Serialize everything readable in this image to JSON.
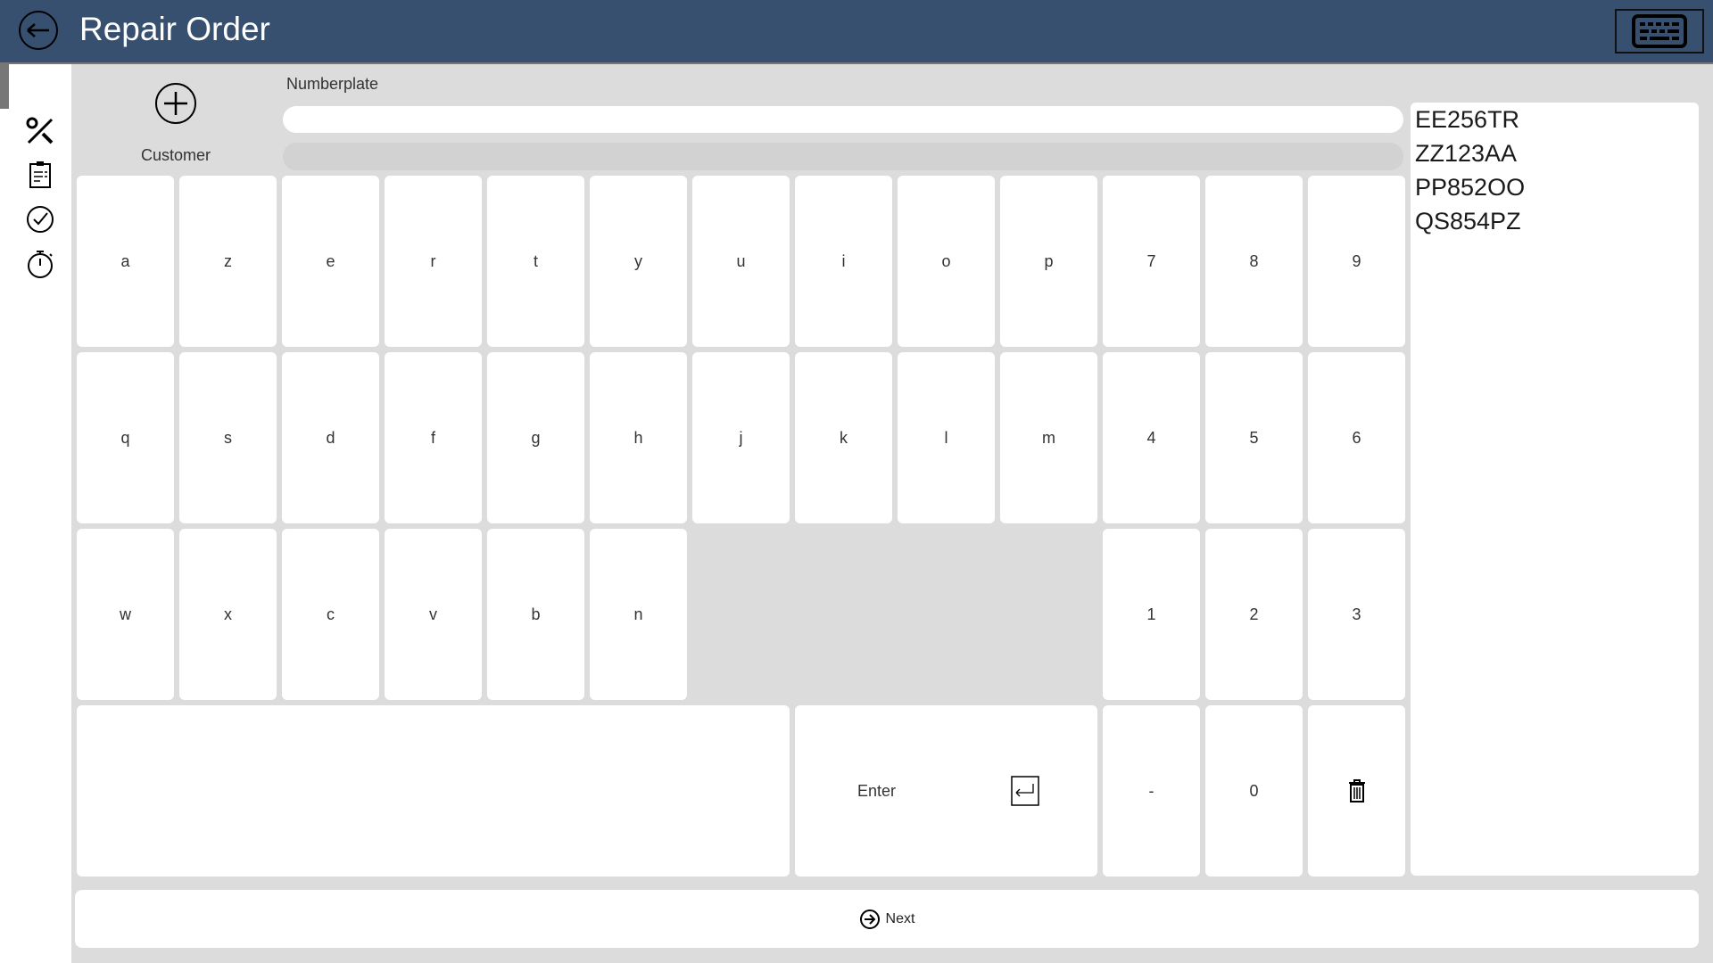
{
  "header": {
    "title": "Repair Order",
    "back_icon": "back-arrow-icon",
    "keyboard_icon": "keyboard-icon",
    "color": "#37506f"
  },
  "sidebar": {
    "items": [
      "tools-icon",
      "clipboard-icon",
      "check-circle-icon",
      "stopwatch-icon"
    ]
  },
  "customer": {
    "label": "Customer",
    "icon": "plus-circle-icon"
  },
  "numberplate": {
    "label": "Numberplate",
    "value": "",
    "placeholder": ""
  },
  "suggestions": [
    "EE256TR",
    "ZZ123AA",
    "PP852OO",
    "QS854PZ"
  ],
  "keyboard": {
    "rows": [
      [
        "a",
        "z",
        "e",
        "r",
        "t",
        "y",
        "u",
        "i",
        "o",
        "p",
        "7",
        "8",
        "9"
      ],
      [
        "q",
        "s",
        "d",
        "f",
        "g",
        "h",
        "j",
        "k",
        "l",
        "m",
        "4",
        "5",
        "6"
      ],
      [
        "w",
        "x",
        "c",
        "v",
        "b",
        "n",
        "",
        "",
        "",
        "",
        "1",
        "2",
        "3"
      ]
    ],
    "space_label": "",
    "enter_label": "Enter",
    "dash_label": "-",
    "zero_label": "0",
    "delete_icon": "trash-icon"
  },
  "footer": {
    "next_label": "Next"
  }
}
